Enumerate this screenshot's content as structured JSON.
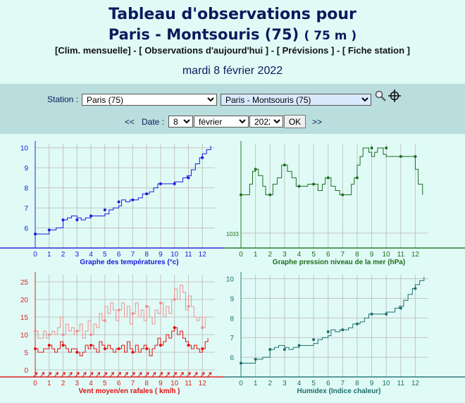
{
  "header": {
    "title_line1": "Tableau d'observations pour",
    "title_line2": "Paris - Montsouris (75)",
    "altitude": "( 75 m )",
    "date": "mardi 8 février 2022"
  },
  "nav": {
    "clim": "[Clim. mensuelle]",
    "sep1": " - ",
    "obs": "[ Observations d'aujourd'hui ]",
    "sep2": " - ",
    "prev": "[ Prévisions ]",
    "sep3": " - ",
    "fiche": "[ Fiche station ]"
  },
  "form": {
    "station_label": "Station :",
    "station_value": "Paris (75)",
    "city_value": "Paris - Montsouris (75)",
    "prev_arrow": "<<",
    "date_label": "Date :",
    "next_arrow": ">>",
    "day": "8",
    "month": "février",
    "year": "2022",
    "ok_label": "OK"
  },
  "icons": {
    "search": "magnifier-icon",
    "locate": "crosshair-icon"
  },
  "chart_data": [
    {
      "type": "line",
      "title": "Graphe des températures (°c)",
      "color": "#1a1adc",
      "x_ticks": [
        "0",
        "1",
        "2",
        "3",
        "4",
        "5",
        "6",
        "7",
        "8",
        "9",
        "10",
        "11",
        "12"
      ],
      "y_ticks": [
        "6",
        "7",
        "8",
        "9",
        "10"
      ],
      "ylim": [
        5,
        10.2
      ],
      "grid": true,
      "x": [
        0,
        0.5,
        0.9,
        1,
        1.2,
        1.5,
        2,
        2.3,
        2.6,
        3,
        3.3,
        3.6,
        4,
        4.3,
        4.6,
        5,
        5.3,
        5.6,
        5.9,
        6,
        6.2,
        6.5,
        6.8,
        7.1,
        7.4,
        7.7,
        8,
        8.2,
        8.5,
        8.8,
        9,
        9.3,
        9.6,
        9.9,
        10,
        10.3,
        10.6,
        10.9,
        11.2,
        11.5,
        11.8,
        12,
        12.3,
        12.6
      ],
      "y": [
        5.7,
        5.7,
        5.7,
        5.9,
        5.9,
        6.0,
        6.4,
        6.5,
        6.6,
        6.5,
        6.4,
        6.5,
        6.6,
        6.6,
        6.6,
        6.7,
        6.9,
        7.0,
        7.0,
        7.1,
        7.4,
        7.3,
        7.4,
        7.4,
        7.5,
        7.7,
        7.7,
        7.8,
        8.0,
        8.2,
        8.2,
        8.2,
        8.2,
        8.2,
        8.3,
        8.3,
        8.5,
        8.6,
        8.9,
        9.2,
        9.5,
        9.7,
        9.9,
        10.1
      ],
      "marker_x": [
        0,
        1,
        2,
        3,
        4,
        5,
        6,
        7,
        8,
        9,
        10,
        11,
        12
      ],
      "marker_y": [
        5.7,
        5.9,
        6.4,
        6.4,
        6.6,
        6.9,
        7.3,
        7.4,
        7.7,
        8.2,
        8.2,
        8.5,
        9.5
      ]
    },
    {
      "type": "line",
      "title": "Graphe pression niveau de la mer (hPa)",
      "color": "#1e6e1e",
      "x_ticks": [
        "0",
        "1",
        "2",
        "3",
        "4",
        "5",
        "6",
        "7",
        "8",
        "9",
        "10",
        "11",
        "12"
      ],
      "y_ticks": [
        "1033"
      ],
      "ylim": [
        1032.3,
        1037.2
      ],
      "grid": true,
      "x": [
        0,
        0.4,
        0.6,
        0.8,
        1,
        1.2,
        1.5,
        1.7,
        2,
        2.2,
        2.5,
        2.8,
        3,
        3.2,
        3.5,
        3.8,
        4,
        4.3,
        4.6,
        5,
        5.3,
        5.6,
        5.8,
        6,
        6.2,
        6.5,
        6.8,
        7,
        7.3,
        7.6,
        7.8,
        8,
        8.2,
        8.4,
        8.6,
        8.8,
        9,
        9.2,
        9.4,
        9.6,
        9.8,
        10,
        10.2,
        10.4,
        10.7,
        11,
        11.4,
        11.8,
        12,
        12.2,
        12.5
      ],
      "y": [
        1034.8,
        1034.8,
        1035.3,
        1035.9,
        1036.0,
        1035.7,
        1035.2,
        1034.8,
        1034.8,
        1035.3,
        1035.6,
        1036.2,
        1036.2,
        1035.9,
        1035.6,
        1035.2,
        1035.2,
        1035.2,
        1035.3,
        1035.3,
        1035.0,
        1035.3,
        1035.6,
        1035.6,
        1035.2,
        1035.0,
        1034.8,
        1034.8,
        1034.8,
        1035.3,
        1035.6,
        1036.2,
        1036.6,
        1037.0,
        1037.0,
        1036.8,
        1036.6,
        1036.8,
        1037.0,
        1037.0,
        1036.7,
        1036.6,
        1036.6,
        1036.6,
        1036.6,
        1036.6,
        1036.6,
        1036.6,
        1036.0,
        1035.3,
        1034.8
      ],
      "marker_x": [
        0,
        1,
        2,
        3,
        4,
        5,
        6,
        7,
        8,
        9,
        10,
        11,
        12
      ],
      "marker_y": [
        1034.8,
        1036.0,
        1034.8,
        1036.2,
        1035.2,
        1035.3,
        1035.6,
        1034.8,
        1035.6,
        1037.0,
        1037.0,
        1036.6,
        1036.6
      ]
    },
    {
      "type": "line",
      "title": "Vent moyen/en rafales ( km/h )",
      "x_ticks": [
        "0",
        "1",
        "2",
        "3",
        "4",
        "5",
        "6",
        "7",
        "8",
        "9",
        "10",
        "11",
        "12"
      ],
      "y_ticks": [
        "0",
        "5",
        "10",
        "15",
        "20",
        "25"
      ],
      "ylim": [
        -2,
        27
      ],
      "grid": true,
      "series": [
        {
          "color": "#ee9090",
          "x": [
            0,
            0.2,
            0.4,
            0.6,
            0.8,
            1,
            1.2,
            1.4,
            1.6,
            1.8,
            2,
            2.2,
            2.4,
            2.6,
            2.8,
            3,
            3.2,
            3.4,
            3.6,
            3.8,
            4,
            4.2,
            4.4,
            4.6,
            4.8,
            5,
            5.2,
            5.4,
            5.6,
            5.8,
            6,
            6.2,
            6.4,
            6.6,
            6.8,
            7,
            7.2,
            7.4,
            7.6,
            7.8,
            8,
            8.2,
            8.4,
            8.6,
            8.8,
            9,
            9.2,
            9.4,
            9.6,
            9.8,
            10,
            10.2,
            10.4,
            10.6,
            10.8,
            11,
            11.2,
            11.4,
            11.6,
            11.8,
            12,
            12.2,
            12.4
          ],
          "y": [
            11,
            9,
            9,
            11,
            9,
            10,
            11,
            10,
            12,
            15,
            10,
            13,
            11,
            12,
            10,
            11,
            13,
            9,
            11,
            14,
            10,
            13,
            12,
            16,
            14,
            18,
            16,
            19,
            17,
            14,
            17,
            19,
            15,
            18,
            13,
            16,
            19,
            15,
            17,
            14,
            18,
            15,
            13,
            17,
            16,
            19,
            15,
            18,
            16,
            20,
            23,
            20,
            24,
            22,
            17,
            21,
            18,
            15,
            14,
            15,
            12,
            15,
            15
          ],
          "marker_x": [
            0,
            1,
            2,
            3,
            4,
            5,
            6,
            7,
            8,
            9,
            10,
            11,
            12
          ],
          "marker_y": [
            11,
            10,
            10,
            11,
            10,
            14,
            17,
            16,
            18,
            19,
            20,
            18,
            12
          ]
        },
        {
          "color": "#e01010",
          "x": [
            0,
            0.2,
            0.4,
            0.6,
            0.8,
            1,
            1.2,
            1.4,
            1.6,
            1.8,
            2,
            2.2,
            2.4,
            2.6,
            2.8,
            3,
            3.2,
            3.4,
            3.6,
            3.8,
            4,
            4.2,
            4.4,
            4.6,
            4.8,
            5,
            5.2,
            5.4,
            5.6,
            5.8,
            6,
            6.2,
            6.4,
            6.6,
            6.8,
            7,
            7.2,
            7.4,
            7.6,
            7.8,
            8,
            8.2,
            8.4,
            8.6,
            8.8,
            9,
            9.2,
            9.4,
            9.6,
            9.8,
            10,
            10.2,
            10.4,
            10.6,
            10.8,
            11,
            11.2,
            11.4,
            11.6,
            11.8,
            12,
            12.2,
            12.4
          ],
          "y": [
            6,
            5,
            5,
            6,
            6,
            7,
            6,
            5,
            6,
            8,
            7,
            6,
            5,
            6,
            6,
            5,
            4,
            5,
            7,
            6,
            7,
            6,
            5,
            8,
            7,
            6,
            7,
            6,
            5,
            6,
            6,
            7,
            5,
            8,
            6,
            5,
            7,
            5,
            6,
            7,
            6,
            4,
            6,
            7,
            9,
            7,
            8,
            10,
            9,
            11,
            12,
            10,
            11,
            9,
            8,
            7,
            6,
            7,
            6,
            5,
            6,
            8,
            9
          ],
          "marker_x": [
            0,
            1,
            2,
            3,
            4,
            5,
            6,
            7,
            8,
            9,
            10,
            11,
            12
          ],
          "marker_y": [
            6,
            7,
            7,
            5,
            7,
            6,
            6,
            5,
            6,
            7,
            12,
            7,
            6
          ]
        }
      ]
    },
    {
      "type": "line",
      "title": "Humidex (Indice chaleur)",
      "color": "#1e6e6e",
      "x_ticks": [
        "0",
        "1",
        "2",
        "3",
        "4",
        "5",
        "6",
        "7",
        "8",
        "9",
        "10",
        "11",
        "12"
      ],
      "y_ticks": [
        "6",
        "7",
        "8",
        "9",
        "10"
      ],
      "ylim": [
        5,
        10.2
      ],
      "grid": true,
      "x": [
        0,
        0.5,
        0.9,
        1,
        1.2,
        1.5,
        2,
        2.3,
        2.6,
        3,
        3.3,
        3.6,
        4,
        4.3,
        4.6,
        5,
        5.3,
        5.6,
        5.9,
        6,
        6.2,
        6.5,
        6.8,
        7.1,
        7.4,
        7.7,
        8,
        8.2,
        8.5,
        8.8,
        9,
        9.3,
        9.6,
        9.9,
        10,
        10.3,
        10.6,
        10.9,
        11.2,
        11.5,
        11.8,
        12,
        12.3,
        12.6
      ],
      "y": [
        5.7,
        5.7,
        5.7,
        5.9,
        5.9,
        6.0,
        6.4,
        6.5,
        6.6,
        6.5,
        6.4,
        6.5,
        6.6,
        6.6,
        6.6,
        6.7,
        6.9,
        7.0,
        7.0,
        7.1,
        7.4,
        7.3,
        7.4,
        7.4,
        7.5,
        7.7,
        7.7,
        7.8,
        8.0,
        8.2,
        8.2,
        8.2,
        8.2,
        8.2,
        8.3,
        8.3,
        8.5,
        8.6,
        8.9,
        9.2,
        9.5,
        9.7,
        9.9,
        10.1
      ],
      "marker_x": [
        0,
        1,
        2,
        3,
        4,
        5,
        6,
        7,
        8,
        9,
        10,
        11,
        12
      ],
      "marker_y": [
        5.7,
        5.9,
        6.4,
        6.4,
        6.6,
        6.9,
        7.3,
        7.4,
        7.7,
        8.2,
        8.2,
        8.5,
        9.5
      ]
    }
  ]
}
